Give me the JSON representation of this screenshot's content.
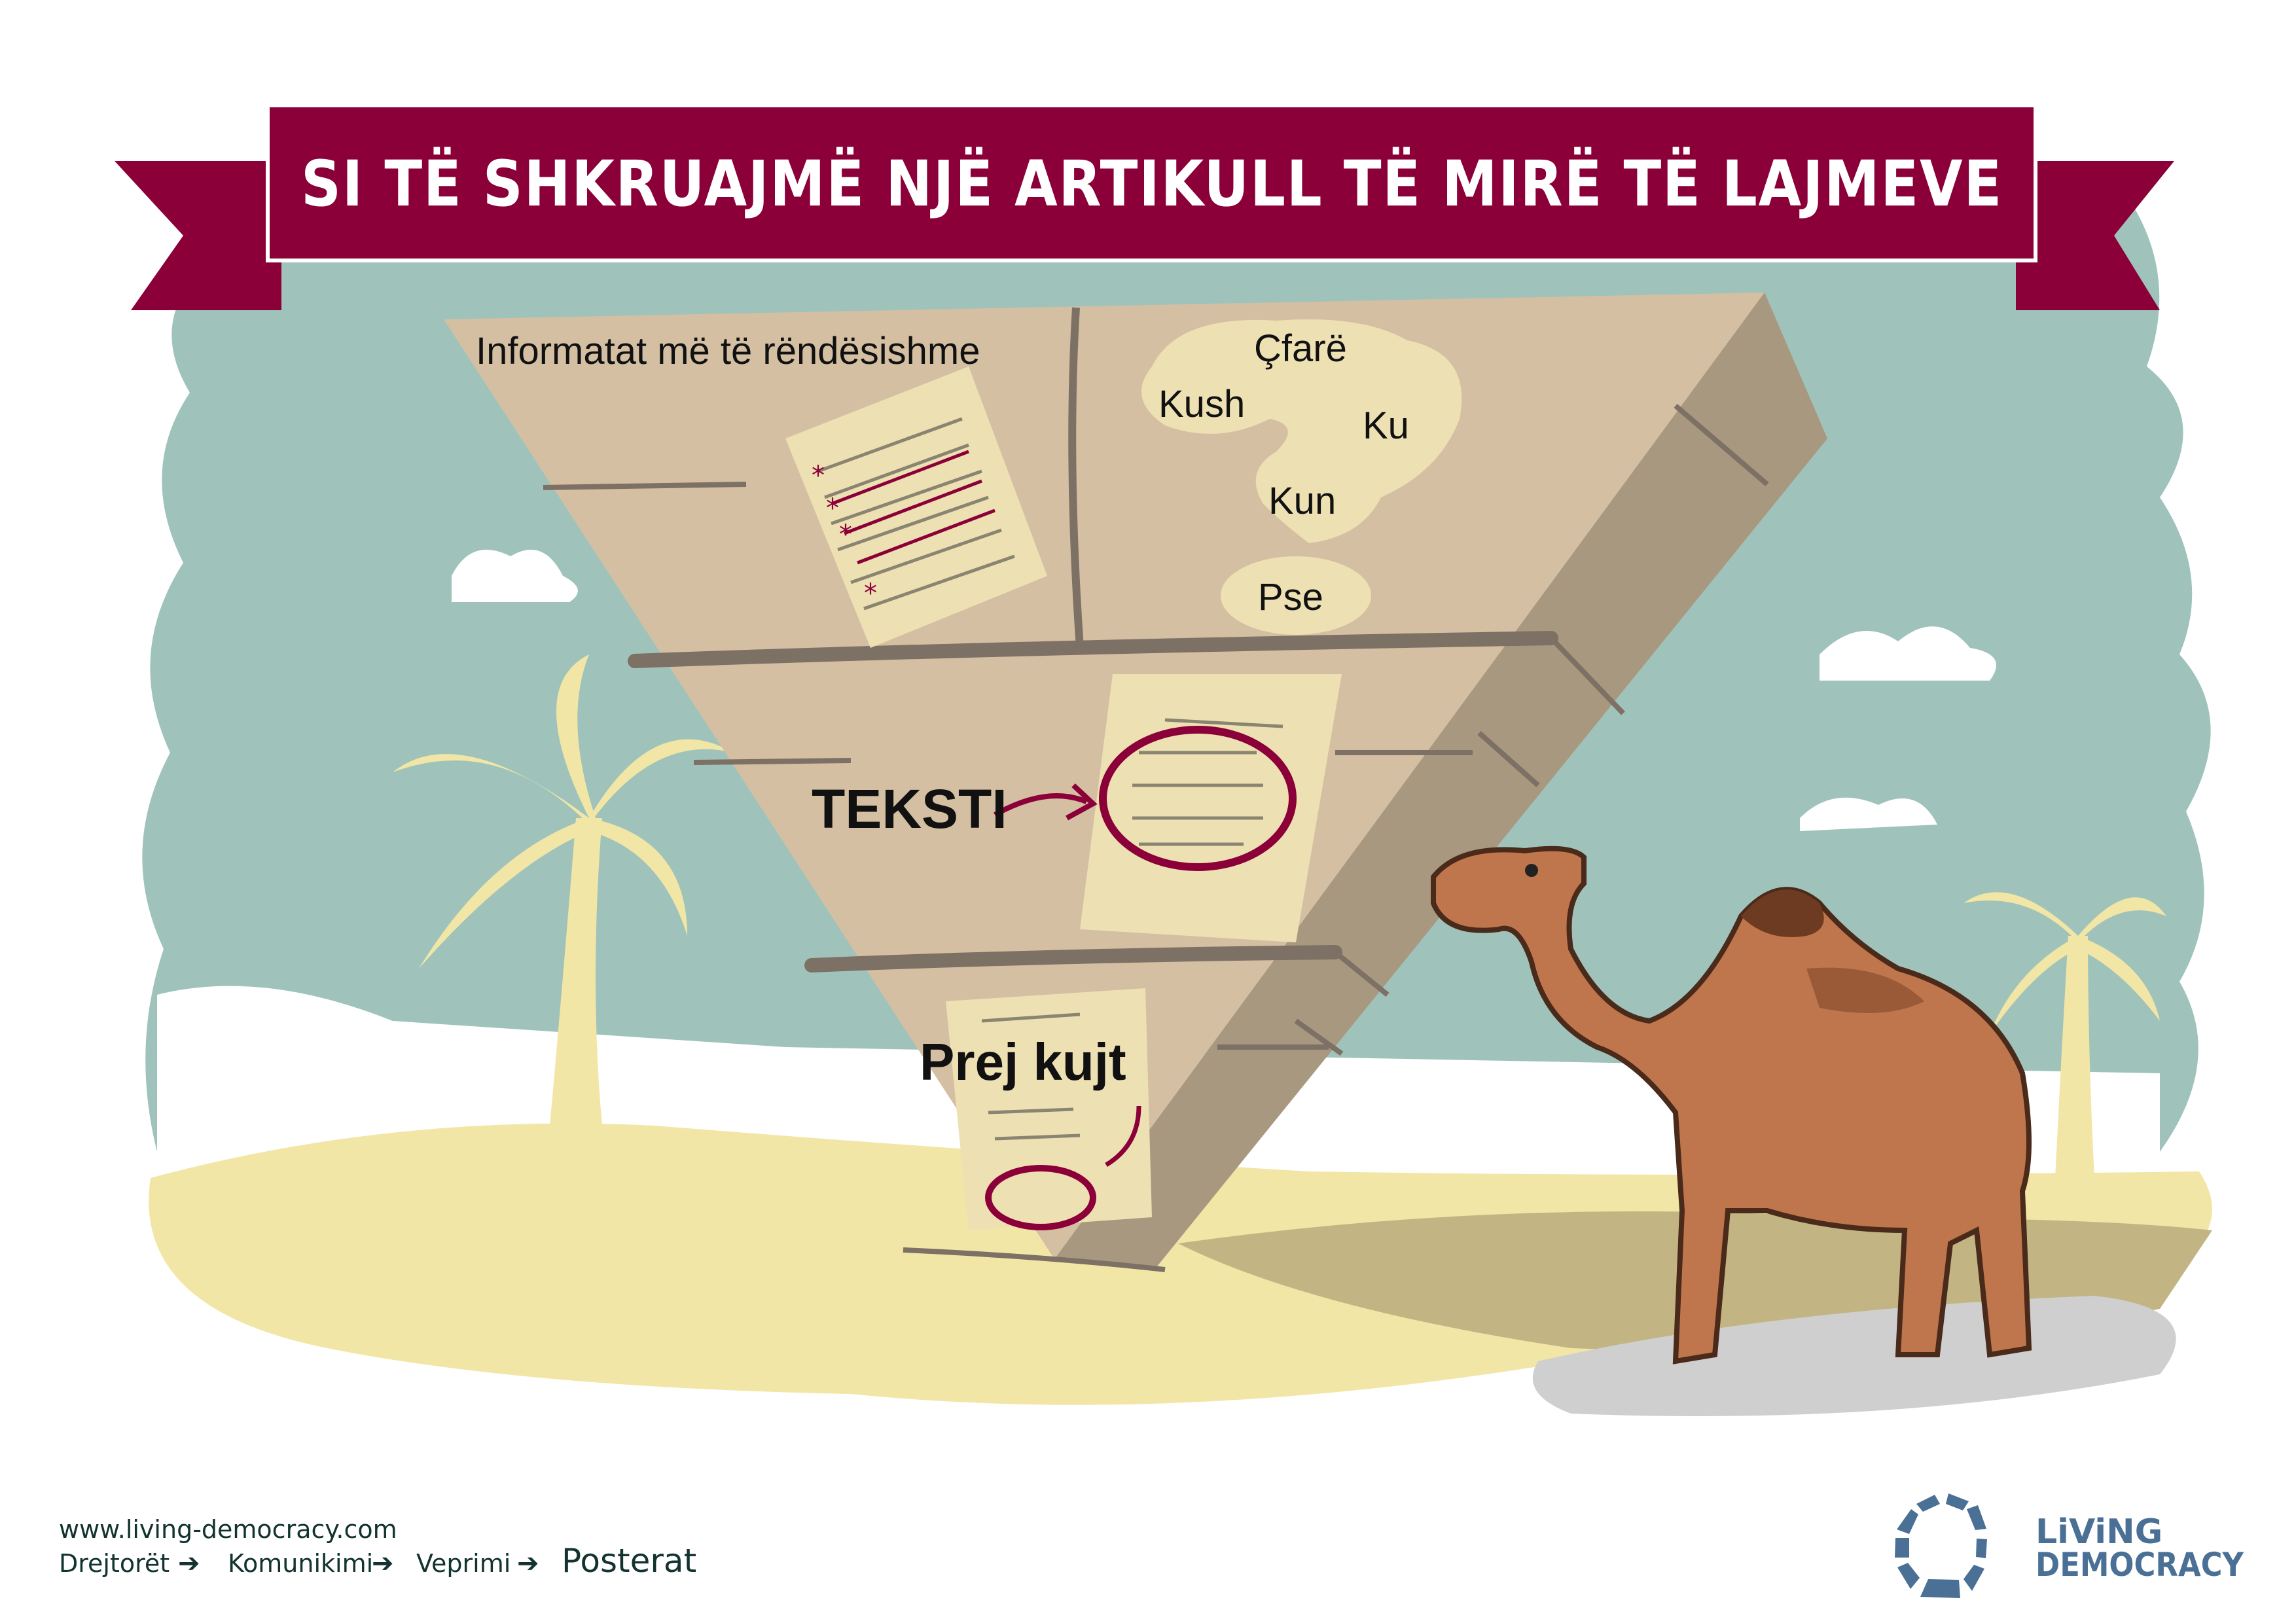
{
  "poster": {
    "title": "SI TË SHKRUAJMË NJË ARTIKULL TË MIRË TË LAJMEVE",
    "pyramid": {
      "top_label": "Informatat më të rëndësishme",
      "questions": [
        "Çfarë",
        "Kush",
        "Ku",
        "Kun",
        "Pse"
      ],
      "middle_label": "TEKSTI",
      "bottom_label": "Prej kujt"
    }
  },
  "footer": {
    "url": "www.living-democracy.com",
    "breadcrumb": [
      "Drejtorët",
      "Komunikimi",
      "Veprimi",
      "Posterat"
    ],
    "arrow_icon": "right-arrow-icon"
  },
  "logo": {
    "line1": "LiViNG",
    "line2": "DEMOCRACY",
    "color": "#4a7096"
  },
  "colors": {
    "banner": "#8c0039",
    "sky": "#9fc3bb",
    "sand": "#f2e6a6",
    "pyramid_front": "#d4bfa3",
    "pyramid_side": "#a89880",
    "camel": "#c0764c"
  }
}
